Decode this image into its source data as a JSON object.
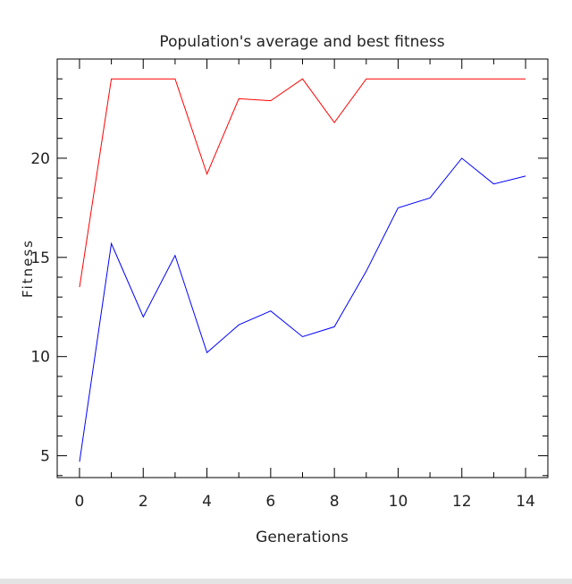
{
  "chart_data": {
    "type": "line",
    "title": "Population's average and best fitness",
    "xlabel": "Generations",
    "ylabel": "Fitness",
    "xlim": [
      -0.7,
      14.7
    ],
    "ylim": [
      3.9,
      25.0
    ],
    "x_ticks": [
      0,
      2,
      4,
      6,
      8,
      10,
      12,
      14
    ],
    "y_ticks": [
      5,
      10,
      15,
      20
    ],
    "grid": false,
    "legend": "none",
    "x": [
      0,
      1,
      2,
      3,
      4,
      5,
      6,
      7,
      8,
      9,
      10,
      11,
      12,
      13,
      14
    ],
    "series": [
      {
        "color": "#ff0000",
        "values": [
          13.5,
          24.0,
          24.0,
          24.0,
          19.2,
          23.0,
          22.9,
          24.0,
          21.8,
          24.0,
          24.0,
          24.0,
          24.0,
          24.0,
          24.0
        ]
      },
      {
        "color": "#0000ff",
        "values": [
          4.7,
          15.7,
          12.0,
          15.1,
          10.2,
          11.6,
          12.3,
          11.0,
          11.5,
          14.3,
          17.5,
          18.0,
          20.0,
          18.7,
          19.1
        ]
      }
    ]
  }
}
